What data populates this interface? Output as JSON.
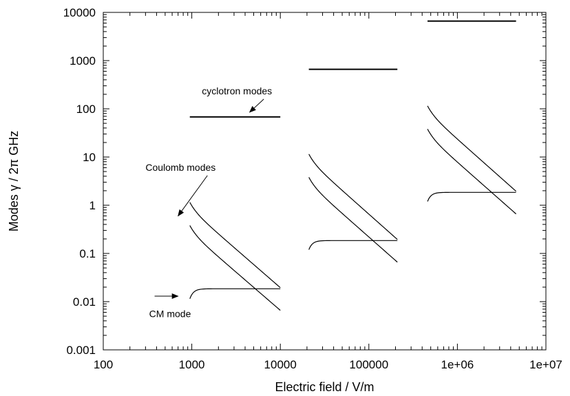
{
  "chart_data": {
    "type": "line",
    "xlabel": "Electric field  /  V/m",
    "ylabel": "Modes γ  /  2π GHz",
    "xscale": "log",
    "yscale": "log",
    "xlim": [
      100,
      10000000
    ],
    "ylim": [
      0.001,
      10000
    ],
    "grid": false,
    "x_ticks": [
      {
        "value": 100,
        "label": "100"
      },
      {
        "value": 1000,
        "label": "1000"
      },
      {
        "value": 10000,
        "label": "10000"
      },
      {
        "value": 100000,
        "label": "100000"
      },
      {
        "value": 1000000,
        "label": "1e+06"
      },
      {
        "value": 10000000,
        "label": "1e+07"
      }
    ],
    "y_ticks": [
      {
        "value": 0.001,
        "label": "0.001"
      },
      {
        "value": 0.01,
        "label": "0.01"
      },
      {
        "value": 0.1,
        "label": "0.1"
      },
      {
        "value": 1,
        "label": "1"
      },
      {
        "value": 10,
        "label": "10"
      },
      {
        "value": 100,
        "label": "100"
      },
      {
        "value": 1000,
        "label": "1000"
      },
      {
        "value": 10000,
        "label": "10000"
      }
    ],
    "groups": [
      {
        "xrange": [
          950,
          10000
        ],
        "cyclotron": 68,
        "cm": {
          "start": 0.0115,
          "plateau": 0.0185
        },
        "coulomb_upper": {
          "start": 1.15,
          "end": 0.0195
        },
        "coulomb_lower": {
          "start": 0.38,
          "end": 0.0066
        }
      },
      {
        "xrange": [
          21000,
          210000
        ],
        "cyclotron": 660,
        "cm": {
          "start": 0.12,
          "plateau": 0.185
        },
        "coulomb_upper": {
          "start": 11.5,
          "end": 0.195
        },
        "coulomb_lower": {
          "start": 3.8,
          "end": 0.066
        }
      },
      {
        "xrange": [
          460000,
          4600000
        ],
        "cyclotron": 6600,
        "cm": {
          "start": 1.2,
          "plateau": 1.85
        },
        "coulomb_upper": {
          "start": 115,
          "end": 1.95
        },
        "coulomb_lower": {
          "start": 38,
          "end": 0.66
        }
      }
    ],
    "annotations": [
      {
        "text": "cyclotron modes",
        "x": 1300,
        "y": 200,
        "arrow_to": [
          4500,
          85
        ]
      },
      {
        "text": "Coulomb modes",
        "x": 300,
        "y": 5.2,
        "arrow_to": [
          700,
          0.6
        ]
      },
      {
        "text": "CM mode",
        "x": 330,
        "y": 0.0048,
        "arrow_to": [
          700,
          0.013
        ],
        "arrow_from": [
          380,
          0.013
        ]
      }
    ]
  }
}
